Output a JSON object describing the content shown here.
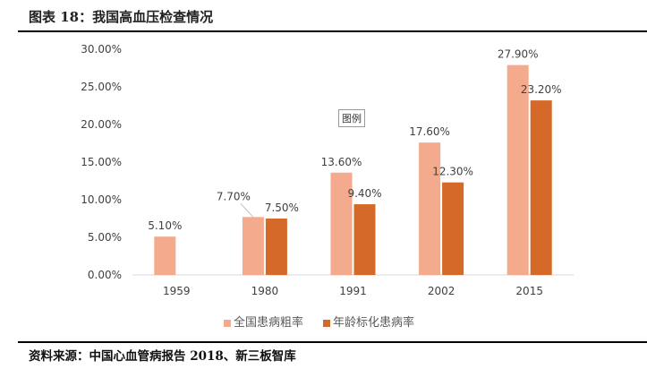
{
  "title": "图表 18：我国高血压检查情况",
  "source": "资料来源：中国心血管病报告 2018、新三板智库",
  "annotation": "图例",
  "chart_data": {
    "type": "bar",
    "categories": [
      "1959",
      "1980",
      "1991",
      "2002",
      "2015"
    ],
    "series": [
      {
        "name": "全国患病粗率",
        "color": "#F4AA8C",
        "values": [
          5.1,
          7.7,
          13.6,
          17.6,
          27.9
        ],
        "labels": [
          "5.10%",
          "7.70%",
          "13.60%",
          "17.60%",
          "27.90%"
        ]
      },
      {
        "name": "年龄标化患病率",
        "color": "#D4692A",
        "values": [
          null,
          7.5,
          9.4,
          12.3,
          23.2
        ],
        "labels": [
          "",
          "7.50%",
          "9.40%",
          "12.30%",
          "23.20%"
        ]
      }
    ],
    "ylim": [
      0,
      30
    ],
    "yticks": [
      "0.00%",
      "5.00%",
      "10.00%",
      "15.00%",
      "20.00%",
      "25.00%",
      "30.00%"
    ],
    "grid": false,
    "legend": "bottom"
  }
}
